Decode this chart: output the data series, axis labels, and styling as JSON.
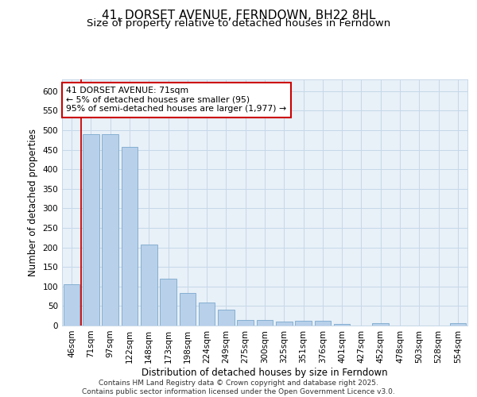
{
  "title": "41, DORSET AVENUE, FERNDOWN, BH22 8HL",
  "subtitle": "Size of property relative to detached houses in Ferndown",
  "xlabel": "Distribution of detached houses by size in Ferndown",
  "ylabel": "Number of detached properties",
  "categories": [
    "46sqm",
    "71sqm",
    "97sqm",
    "122sqm",
    "148sqm",
    "173sqm",
    "198sqm",
    "224sqm",
    "249sqm",
    "275sqm",
    "300sqm",
    "325sqm",
    "351sqm",
    "376sqm",
    "401sqm",
    "427sqm",
    "452sqm",
    "478sqm",
    "503sqm",
    "528sqm",
    "554sqm"
  ],
  "values": [
    105,
    490,
    490,
    458,
    207,
    120,
    83,
    58,
    40,
    15,
    14,
    10,
    13,
    12,
    4,
    0,
    6,
    0,
    0,
    0,
    6
  ],
  "bar_color": "#b8d0ea",
  "bar_edge_color": "#6a9ec5",
  "redline_x": 0,
  "annotation_text": "41 DORSET AVENUE: 71sqm\n← 5% of detached houses are smaller (95)\n95% of semi-detached houses are larger (1,977) →",
  "annotation_box_color": "#ffffff",
  "annotation_box_edge": "#cc0000",
  "redline_color": "#cc0000",
  "grid_color": "#c5d8e8",
  "bg_color": "#e8f0f8",
  "ylim": [
    0,
    630
  ],
  "yticks": [
    0,
    50,
    100,
    150,
    200,
    250,
    300,
    350,
    400,
    450,
    500,
    550,
    600
  ],
  "footer": "Contains HM Land Registry data © Crown copyright and database right 2025.\nContains public sector information licensed under the Open Government Licence v3.0.",
  "title_fontsize": 11,
  "subtitle_fontsize": 9.5,
  "axis_label_fontsize": 8.5,
  "tick_fontsize": 7.5,
  "footer_fontsize": 6.5,
  "annotation_fontsize": 7.8
}
